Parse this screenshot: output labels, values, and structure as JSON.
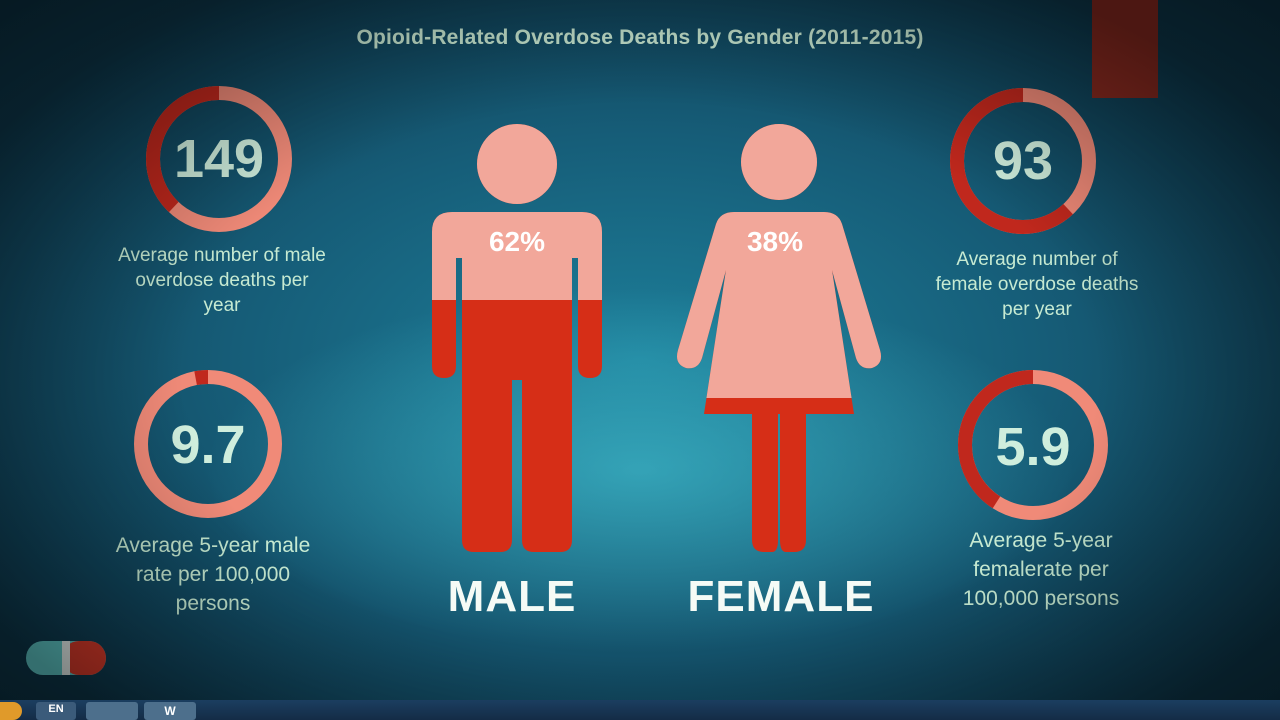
{
  "title": "Opioid-Related Overdose Deaths by Gender (2011-2015)",
  "colors": {
    "ring_dark": "#c0281d",
    "ring_light": "#f08a78",
    "figure_top": "#f2a79a",
    "figure_bottom": "#d62e17",
    "text_mint": "#cdeed7"
  },
  "male_deaths": {
    "value": "149",
    "description": [
      "Average number of male",
      "overdose deaths per",
      "year"
    ],
    "ring_fraction": 0.62
  },
  "female_deaths": {
    "value": "93",
    "description": [
      "Average number of",
      "female overdose deaths",
      "per year"
    ],
    "ring_fraction": 0.38
  },
  "male_rate": {
    "value": "9.7",
    "description": [
      "Average 5-year male",
      "rate per 100,000",
      "persons"
    ],
    "ring_fraction": 0.97
  },
  "female_rate": {
    "value": "5.9",
    "description": [
      "Average 5-year",
      "femalerate per",
      "100,000 persons"
    ],
    "ring_fraction": 0.59
  },
  "male_figure": {
    "percent": "62%",
    "label": "MALE",
    "fill_fraction": 0.62
  },
  "female_figure": {
    "percent": "38%",
    "label": "FEMALE",
    "fill_fraction": 0.38
  },
  "taskbar": {
    "language": "EN",
    "word_icon": "W",
    "icons": [
      "start-orb-icon",
      "language-indicator-icon",
      "folder-icon",
      "word-icon"
    ]
  }
}
